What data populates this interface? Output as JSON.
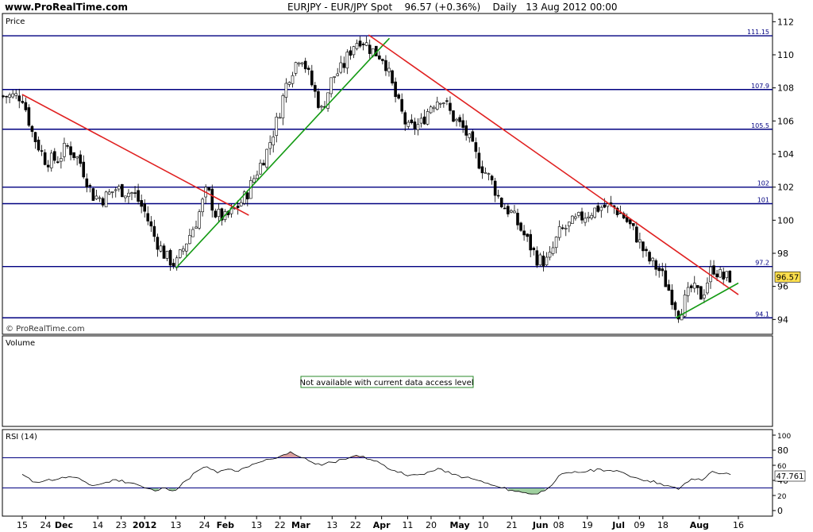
{
  "header": {
    "site": "www.ProRealTime.com",
    "symbol": "EURJPY - EUR/JPY Spot",
    "last": "96.57 (+0.36%)",
    "period": "Daily",
    "datetime": "13 Aug 2012 00:00"
  },
  "price_panel": {
    "label": "Price",
    "watermark": "© ProRealTime.com",
    "current_price": "96.57"
  },
  "volume_panel": {
    "label": "Volume",
    "notice": "Not available with current data access level"
  },
  "rsi_panel": {
    "label": "RSI (14)",
    "current_value": "47.761"
  },
  "colors": {
    "panel_bg": "#ffffff",
    "level_line": "#000080",
    "trend_down": "#e02020",
    "trend_up": "#139a13",
    "rsi_fill_high": "#d9a0a0",
    "rsi_fill_low": "#9fd09f",
    "price_tag": "#ffe04d"
  },
  "chart_data": [
    {
      "type": "candlestick",
      "title": "EURJPY - EUR/JPY Spot",
      "ylim": [
        93.2,
        112.4
      ],
      "y_ticks": [
        94,
        96,
        98,
        100,
        102,
        104,
        106,
        108,
        110,
        112
      ],
      "x_ticks": [
        "15",
        "24",
        "Dec",
        "14",
        "23",
        "2012",
        "13",
        "24",
        "Feb",
        "13",
        "22",
        "Mar",
        "13",
        "22",
        "Apr",
        "11",
        "20",
        "May",
        "10",
        "21",
        "Jun",
        "08",
        "19",
        "Jul",
        "09",
        "18",
        "Aug",
        "16"
      ],
      "horizontal_levels": [
        {
          "value": 111.15,
          "label": "111.15"
        },
        {
          "value": 107.9,
          "label": "107.9"
        },
        {
          "value": 105.5,
          "label": "105.5"
        },
        {
          "value": 102,
          "label": "102"
        },
        {
          "value": 101,
          "label": "101"
        },
        {
          "value": 97.2,
          "label": "97.2"
        },
        {
          "value": 94.1,
          "label": "94.1"
        }
      ],
      "trendlines": [
        {
          "color": "red",
          "start": [
            "15 Nov 2011",
            107.6
          ],
          "end": [
            "10 Feb 2012",
            100.3
          ]
        },
        {
          "color": "green",
          "start": [
            "13 Jan 2012",
            97.1
          ],
          "end": [
            "4 Apr 2012",
            111.0
          ]
        },
        {
          "color": "red",
          "start": [
            "27 Mar 2012",
            111.2
          ],
          "end": [
            "16 Aug 2012",
            95.5
          ]
        },
        {
          "color": "green",
          "start": [
            "23 Jul 2012",
            94.1
          ],
          "end": [
            "16 Aug 2012",
            96.2
          ]
        }
      ],
      "close_path": [
        {
          "date": "15 Nov 2011",
          "close": 107.5
        },
        {
          "date": "19 Nov 2011",
          "close": 105.2
        },
        {
          "date": "24 Nov 2011",
          "close": 103.6
        },
        {
          "date": "29 Nov 2011",
          "close": 103.7
        },
        {
          "date": "2 Dec 2011",
          "close": 104.5
        },
        {
          "date": "7 Dec 2011",
          "close": 103.6
        },
        {
          "date": "12 Dec 2011",
          "close": 101.5
        },
        {
          "date": "16 Dec 2011",
          "close": 101.3
        },
        {
          "date": "21 Dec 2011",
          "close": 101.9
        },
        {
          "date": "28 Dec 2011",
          "close": 101.6
        },
        {
          "date": "1 Jan 2012",
          "close": 100.5
        },
        {
          "date": "5 Jan 2012",
          "close": 98.9
        },
        {
          "date": "9 Jan 2012",
          "close": 97.8
        },
        {
          "date": "13 Jan 2012",
          "close": 97.3
        },
        {
          "date": "17 Jan 2012",
          "close": 98.7
        },
        {
          "date": "21 Jan 2012",
          "close": 100.0
        },
        {
          "date": "25 Jan 2012",
          "close": 101.9
        },
        {
          "date": "28 Jan 2012",
          "close": 100.4
        },
        {
          "date": "1 Feb 2012",
          "close": 100.1
        },
        {
          "date": "5 Feb 2012",
          "close": 100.7
        },
        {
          "date": "9 Feb 2012",
          "close": 101.5
        },
        {
          "date": "13 Feb 2012",
          "close": 102.9
        },
        {
          "date": "17 Feb 2012",
          "close": 104.2
        },
        {
          "date": "21 Feb 2012",
          "close": 106.1
        },
        {
          "date": "25 Feb 2012",
          "close": 108.6
        },
        {
          "date": "1 Mar 2012",
          "close": 110.1
        },
        {
          "date": "5 Mar 2012",
          "close": 108.3
        },
        {
          "date": "9 Mar 2012",
          "close": 106.6
        },
        {
          "date": "13 Mar 2012",
          "close": 108.6
        },
        {
          "date": "17 Mar 2012",
          "close": 109.2
        },
        {
          "date": "21 Mar 2012",
          "close": 110.6
        },
        {
          "date": "24 Mar 2012",
          "close": 111.0
        },
        {
          "date": "28 Mar 2012",
          "close": 110.3
        },
        {
          "date": "2 Apr 2012",
          "close": 109.8
        },
        {
          "date": "6 Apr 2012",
          "close": 107.6
        },
        {
          "date": "11 Apr 2012",
          "close": 105.5
        },
        {
          "date": "16 Apr 2012",
          "close": 105.8
        },
        {
          "date": "20 Apr 2012",
          "close": 107.0
        },
        {
          "date": "24 Apr 2012",
          "close": 107.5
        },
        {
          "date": "28 Apr 2012",
          "close": 106.3
        },
        {
          "date": "3 May 2012",
          "close": 105.4
        },
        {
          "date": "8 May 2012",
          "close": 103.6
        },
        {
          "date": "13 May 2012",
          "close": 102.4
        },
        {
          "date": "17 May 2012",
          "close": 101.0
        },
        {
          "date": "21 May 2012",
          "close": 100.4
        },
        {
          "date": "25 May 2012",
          "close": 99.3
        },
        {
          "date": "31 May 2012",
          "close": 97.6
        },
        {
          "date": "4 Jun 2012",
          "close": 97.5
        },
        {
          "date": "8 Jun 2012",
          "close": 99.2
        },
        {
          "date": "13 Jun 2012",
          "close": 99.8
        },
        {
          "date": "19 Jun 2012",
          "close": 100.4
        },
        {
          "date": "24 Jun 2012",
          "close": 100.8
        },
        {
          "date": "29 Jun 2012",
          "close": 100.8
        },
        {
          "date": "3 Jul 2012",
          "close": 100.2
        },
        {
          "date": "7 Jul 2012",
          "close": 99.3
        },
        {
          "date": "12 Jul 2012",
          "close": 97.7
        },
        {
          "date": "17 Jul 2012",
          "close": 96.9
        },
        {
          "date": "20 Jul 2012",
          "close": 95.9
        },
        {
          "date": "24 Jul 2012",
          "close": 94.4
        },
        {
          "date": "29 Jul 2012",
          "close": 95.9
        },
        {
          "date": "2 Aug 2012",
          "close": 95.4
        },
        {
          "date": "6 Aug 2012",
          "close": 97.2
        },
        {
          "date": "10 Aug 2012",
          "close": 96.5
        },
        {
          "date": "13 Aug 2012",
          "close": 96.57
        }
      ]
    },
    {
      "type": "line",
      "title": "RSI (14)",
      "ylim": [
        0,
        100
      ],
      "y_ticks": [
        0,
        20,
        40,
        60,
        80,
        100
      ],
      "reference_levels": [
        30,
        70
      ],
      "current": 47.761,
      "series": [
        {
          "date": "15 Nov 2011",
          "value": 48
        },
        {
          "date": "19 Nov 2011",
          "value": 38
        },
        {
          "date": "24 Nov 2011",
          "value": 40
        },
        {
          "date": "29 Nov 2011",
          "value": 42
        },
        {
          "date": "3 Dec 2011",
          "value": 45
        },
        {
          "date": "8 Dec 2011",
          "value": 40
        },
        {
          "date": "12 Dec 2011",
          "value": 33
        },
        {
          "date": "16 Dec 2011",
          "value": 36
        },
        {
          "date": "21 Dec 2011",
          "value": 41
        },
        {
          "date": "28 Dec 2011",
          "value": 36
        },
        {
          "date": "1 Jan 2012",
          "value": 30
        },
        {
          "date": "5 Jan 2012",
          "value": 26
        },
        {
          "date": "9 Jan 2012",
          "value": 30
        },
        {
          "date": "13 Jan 2012",
          "value": 27
        },
        {
          "date": "17 Jan 2012",
          "value": 40
        },
        {
          "date": "21 Jan 2012",
          "value": 52
        },
        {
          "date": "25 Jan 2012",
          "value": 58
        },
        {
          "date": "29 Jan 2012",
          "value": 50
        },
        {
          "date": "2 Feb 2012",
          "value": 55
        },
        {
          "date": "6 Feb 2012",
          "value": 52
        },
        {
          "date": "10 Feb 2012",
          "value": 58
        },
        {
          "date": "14 Feb 2012",
          "value": 64
        },
        {
          "date": "18 Feb 2012",
          "value": 68
        },
        {
          "date": "22 Feb 2012",
          "value": 72
        },
        {
          "date": "26 Feb 2012",
          "value": 78
        },
        {
          "date": "29 Feb 2012",
          "value": 72
        },
        {
          "date": "4 Mar 2012",
          "value": 66
        },
        {
          "date": "9 Mar 2012",
          "value": 60
        },
        {
          "date": "13 Mar 2012",
          "value": 64
        },
        {
          "date": "17 Mar 2012",
          "value": 68
        },
        {
          "date": "21 Mar 2012",
          "value": 72
        },
        {
          "date": "25 Mar 2012",
          "value": 72
        },
        {
          "date": "29 Mar 2012",
          "value": 66
        },
        {
          "date": "2 Apr 2012",
          "value": 60
        },
        {
          "date": "6 Apr 2012",
          "value": 53
        },
        {
          "date": "11 Apr 2012",
          "value": 46
        },
        {
          "date": "16 Apr 2012",
          "value": 48
        },
        {
          "date": "20 Apr 2012",
          "value": 52
        },
        {
          "date": "24 Apr 2012",
          "value": 55
        },
        {
          "date": "28 Apr 2012",
          "value": 48
        },
        {
          "date": "3 May 2012",
          "value": 44
        },
        {
          "date": "8 May 2012",
          "value": 40
        },
        {
          "date": "13 May 2012",
          "value": 34
        },
        {
          "date": "17 May 2012",
          "value": 30
        },
        {
          "date": "21 May 2012",
          "value": 27
        },
        {
          "date": "25 May 2012",
          "value": 24
        },
        {
          "date": "31 May 2012",
          "value": 22
        },
        {
          "date": "4 Jun 2012",
          "value": 30
        },
        {
          "date": "8 Jun 2012",
          "value": 46
        },
        {
          "date": "13 Jun 2012",
          "value": 50
        },
        {
          "date": "19 Jun 2012",
          "value": 52
        },
        {
          "date": "24 Jun 2012",
          "value": 55
        },
        {
          "date": "29 Jun 2012",
          "value": 52
        },
        {
          "date": "3 Jul 2012",
          "value": 50
        },
        {
          "date": "7 Jul 2012",
          "value": 44
        },
        {
          "date": "12 Jul 2012",
          "value": 40
        },
        {
          "date": "17 Jul 2012",
          "value": 36
        },
        {
          "date": "20 Jul 2012",
          "value": 33
        },
        {
          "date": "24 Jul 2012",
          "value": 28
        },
        {
          "date": "29 Jul 2012",
          "value": 42
        },
        {
          "date": "2 Aug 2012",
          "value": 40
        },
        {
          "date": "6 Aug 2012",
          "value": 52
        },
        {
          "date": "10 Aug 2012",
          "value": 49
        },
        {
          "date": "13 Aug 2012",
          "value": 47.761
        }
      ]
    }
  ]
}
